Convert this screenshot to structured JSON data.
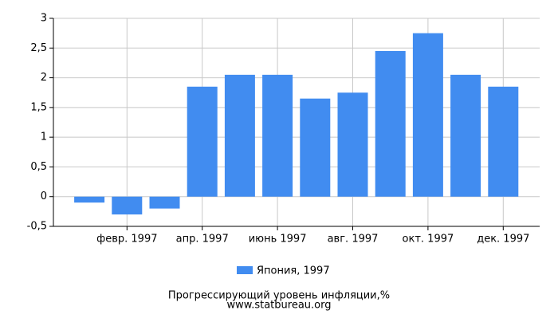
{
  "chart_data": {
    "type": "bar",
    "categories": [
      null,
      "февр. 1997",
      null,
      "апр. 1997",
      null,
      "июнь 1997",
      null,
      "авг. 1997",
      null,
      "окт. 1997",
      null,
      "дек. 1997"
    ],
    "series": [
      {
        "name": "Япония, 1997",
        "color": "#418cf0",
        "values": [
          -0.1,
          -0.3,
          -0.2,
          1.85,
          2.05,
          2.05,
          1.65,
          1.75,
          2.45,
          2.75,
          2.05,
          1.85
        ]
      }
    ],
    "ylim": [
      -0.5,
      3
    ],
    "yticks": [
      {
        "value": -0.5,
        "label": "-0,5"
      },
      0,
      {
        "value": 0.5,
        "label": "0,5"
      },
      1,
      {
        "value": 1.5,
        "label": "1,5"
      },
      2,
      {
        "value": 2.5,
        "label": "2,5"
      },
      3
    ],
    "grid": true,
    "legend": "bottom",
    "title": "Прогрессирующий уровень инфляции,%",
    "source": "www.statbureau.org"
  }
}
